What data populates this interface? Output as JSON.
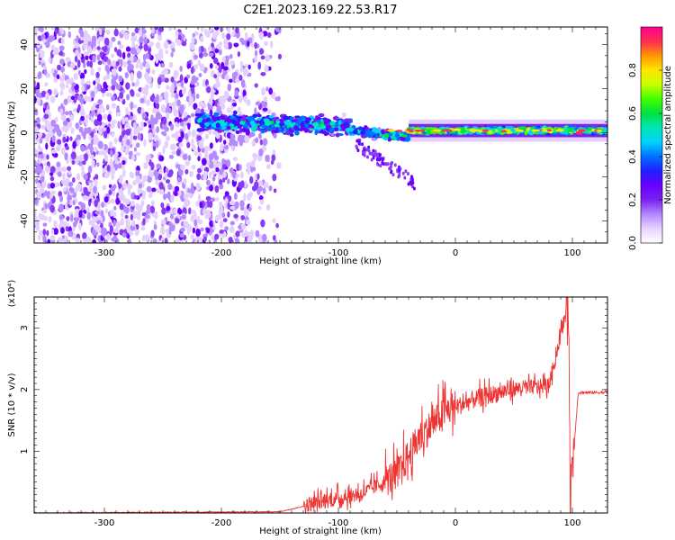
{
  "title": "C2E1.2023.169.22.53.R17",
  "spectrogram": {
    "type": "heatmap",
    "xlabel": "Height of straight line (km)",
    "ylabel": "Frequency (Hz)",
    "xlim": [
      -360,
      130
    ],
    "ylim": [
      -50,
      48
    ],
    "xticks": [
      -300,
      -200,
      -100,
      0,
      100
    ],
    "yticks": [
      -40,
      -20,
      0,
      20,
      40
    ],
    "grid": false,
    "colorbar": {
      "label": "Normalized spectral amplitude",
      "range": [
        0,
        1
      ],
      "ticks": [
        "0.0",
        "0.2",
        "0.4",
        "0.6",
        "0.8"
      ],
      "colors": [
        "#ffffff",
        "#e6d2ff",
        "#b488ff",
        "#7a22ee",
        "#6a00ff",
        "#1f1fff",
        "#0070ff",
        "#00d2ff",
        "#00e6b4",
        "#00e040",
        "#40ff00",
        "#c8ff00",
        "#ffe600",
        "#ff9600",
        "#ff2d55",
        "#ff0090"
      ]
    },
    "bands": [
      {
        "x": [
          -360,
          -150
        ],
        "center_hz": 0,
        "half_width_hz": 48,
        "amplitude": 0.08,
        "note": "noise"
      },
      {
        "x": [
          -220,
          -90
        ],
        "center_hz": 5,
        "half_width_hz": 6,
        "amplitude": 0.45
      },
      {
        "x": [
          -90,
          -40
        ],
        "center_hz": 0,
        "half_width_hz": 3,
        "amplitude": 0.5
      },
      {
        "x": [
          -40,
          130
        ],
        "center_hz": 1,
        "half_width_hz": 2,
        "amplitude": 0.7
      }
    ]
  },
  "snr": {
    "type": "line",
    "xlabel": "Height of straight line (km)",
    "ylabel": "SNR (10 * v/v)",
    "multiplier": "(x10⁴)",
    "xlim": [
      -360,
      130
    ],
    "ylim": [
      0,
      3.5
    ],
    "xticks": [
      -300,
      -200,
      -100,
      0,
      100
    ],
    "yticks": [
      1,
      2,
      3
    ],
    "color": "#ee3333",
    "series_summary": [
      {
        "x": -360,
        "y": 0.0
      },
      {
        "x": -150,
        "y": 0.02
      },
      {
        "x": -120,
        "y": 0.15
      },
      {
        "x": -80,
        "y": 0.3
      },
      {
        "x": -50,
        "y": 0.6
      },
      {
        "x": -30,
        "y": 1.2
      },
      {
        "x": -10,
        "y": 1.6
      },
      {
        "x": 0,
        "y": 1.7
      },
      {
        "x": 20,
        "y": 1.85
      },
      {
        "x": 50,
        "y": 2.0
      },
      {
        "x": 80,
        "y": 2.05
      },
      {
        "x": 97,
        "y": 3.45
      },
      {
        "x": 98,
        "y": 0.25
      },
      {
        "x": 105,
        "y": 1.95
      },
      {
        "x": 130,
        "y": 1.95
      }
    ]
  }
}
